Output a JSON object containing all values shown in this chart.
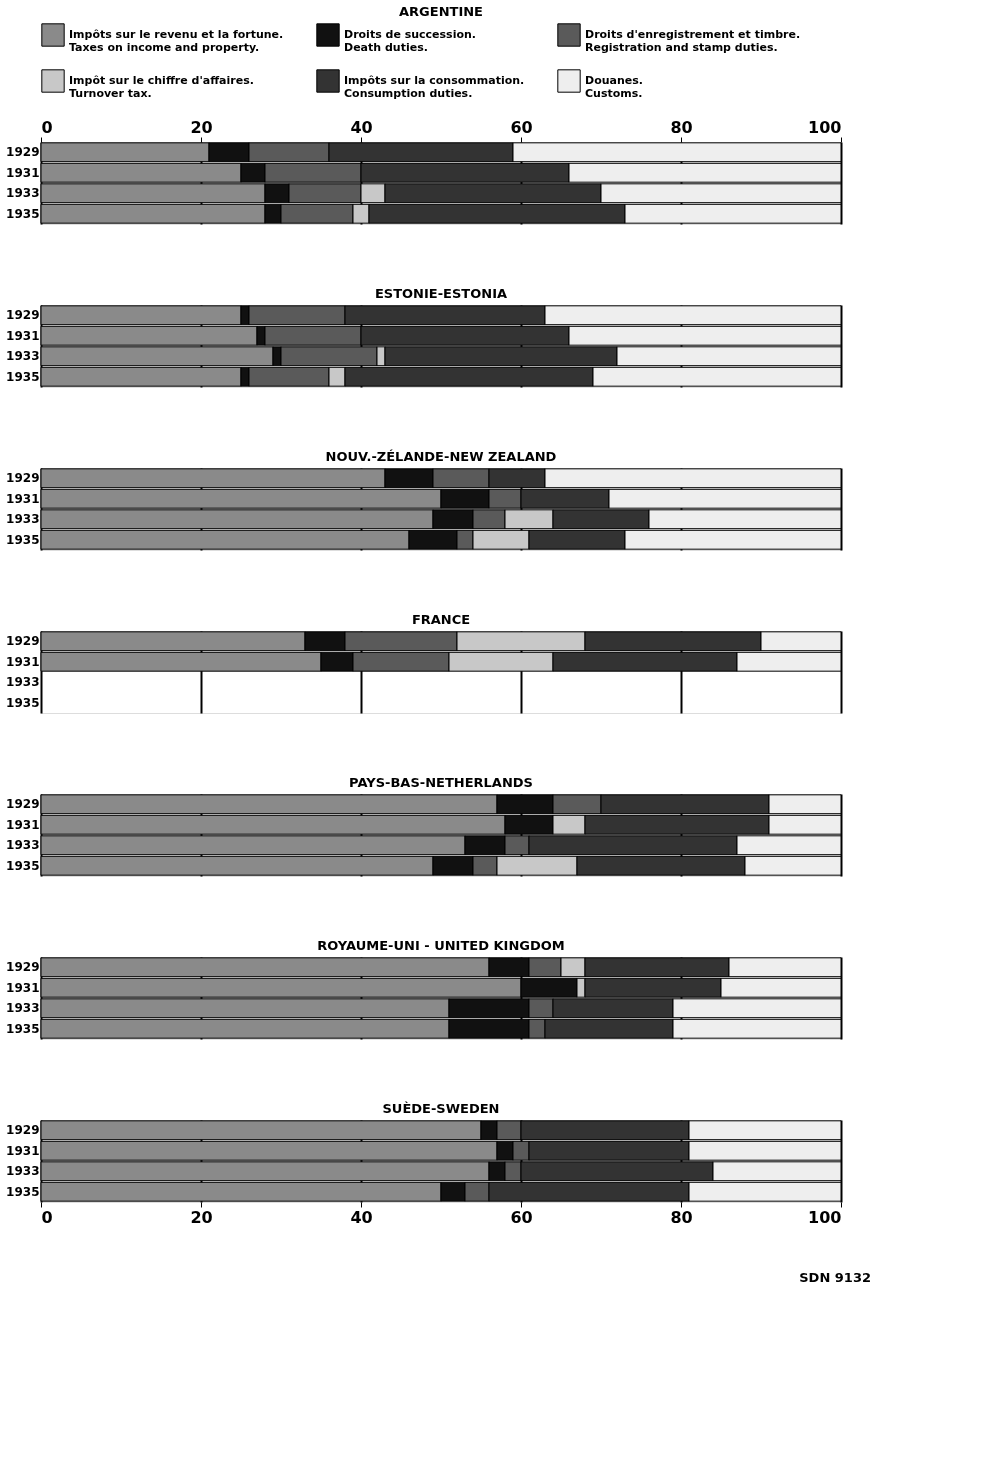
{
  "chart_data": [
    {
      "type": "bar",
      "orientation": "horizontal",
      "stacked": true,
      "title": "ARGENTINE",
      "categories": [
        "1929",
        "1931",
        "1933",
        "1935"
      ],
      "xlim": [
        0,
        100
      ],
      "xticks": [
        0,
        20,
        40,
        60,
        80,
        100
      ],
      "grid": "x",
      "legend": "top",
      "series": [
        {
          "name": "Impôts sur le revenu et la fortune.\nTaxes on income and property.",
          "color": "#8a8a8a",
          "values": [
            21,
            25,
            28,
            28
          ]
        },
        {
          "name": "Droits de succession.\nDeath duties.",
          "color": "#111111",
          "values": [
            5,
            3,
            3,
            2
          ]
        },
        {
          "name": "Droits d'enregistrement et timbre.\nRegistration and stamp duties.",
          "color": "#5a5a5a",
          "values": [
            10,
            12,
            9,
            9
          ]
        },
        {
          "name": "Impôt sur le chiffre d'affaires.\nTurnover tax.",
          "color": "#c8c8c8",
          "values": [
            null,
            null,
            3,
            2
          ]
        },
        {
          "name": "Impôts sur la consommation.\nConsumption duties.",
          "color": "#333333",
          "values": [
            23,
            26,
            27,
            32
          ]
        },
        {
          "name": "Douanes.\nCustoms.",
          "color": "#eeeeee",
          "values": [
            41,
            34,
            30,
            27
          ]
        }
      ]
    },
    {
      "type": "bar",
      "orientation": "horizontal",
      "stacked": true,
      "title": "ESTONIE-ESTONIA",
      "categories": [
        "1929",
        "1931",
        "1933",
        "1935"
      ],
      "xlim": [
        0,
        100
      ],
      "xticks": [
        0,
        20,
        40,
        60,
        80,
        100
      ],
      "grid": "x",
      "tick_labels": "y",
      "series": [
        {
          "color": "#8a8a8a",
          "values": [
            25,
            27,
            29,
            25
          ]
        },
        {
          "color": "#111111",
          "values": [
            1,
            1,
            1,
            1
          ]
        },
        {
          "color": "#5a5a5a",
          "values": [
            12,
            12,
            12,
            10
          ]
        },
        {
          "color": "#c8c8c8",
          "values": [
            null,
            null,
            1,
            2
          ]
        },
        {
          "color": "#333333",
          "values": [
            25,
            26,
            29,
            31
          ]
        },
        {
          "color": "#eeeeee",
          "values": [
            37,
            34,
            28,
            31
          ]
        }
      ]
    },
    {
      "type": "bar",
      "orientation": "horizontal",
      "stacked": true,
      "title": "NOUV.-ZÉLANDE-NEW ZEALAND",
      "categories": [
        "1929",
        "1931",
        "1933",
        "1935"
      ],
      "xlim": [
        0,
        100
      ],
      "xticks": [
        0,
        20,
        40,
        60,
        80,
        100
      ],
      "grid": "x",
      "tick_labels": "y",
      "series": [
        {
          "color": "#8a8a8a",
          "values": [
            43,
            50,
            49,
            46
          ]
        },
        {
          "color": "#111111",
          "values": [
            6,
            6,
            5,
            6
          ]
        },
        {
          "color": "#5a5a5a",
          "values": [
            7,
            4,
            4,
            2
          ]
        },
        {
          "color": "#c8c8c8",
          "values": [
            null,
            null,
            6,
            7
          ]
        },
        {
          "color": "#333333",
          "values": [
            7,
            11,
            12,
            12
          ]
        },
        {
          "color": "#eeeeee",
          "values": [
            37,
            29,
            24,
            27
          ]
        }
      ]
    },
    {
      "type": "bar",
      "orientation": "horizontal",
      "stacked": true,
      "title": "FRANCE",
      "categories": [
        "1929",
        "1931",
        "1933",
        "1935"
      ],
      "xlim": [
        0,
        100
      ],
      "xticks": [
        0,
        20,
        40,
        60,
        80,
        100
      ],
      "grid": "x",
      "tick_labels": "y",
      "series": [
        {
          "color": "#8a8a8a",
          "values": [
            33,
            35,
            null,
            null
          ]
        },
        {
          "color": "#111111",
          "values": [
            5,
            4,
            null,
            null
          ]
        },
        {
          "color": "#5a5a5a",
          "values": [
            14,
            12,
            null,
            null
          ]
        },
        {
          "color": "#c8c8c8",
          "values": [
            16,
            13,
            null,
            null
          ]
        },
        {
          "color": "#333333",
          "values": [
            22,
            23,
            null,
            null
          ]
        },
        {
          "color": "#eeeeee",
          "values": [
            10,
            13,
            null,
            null
          ]
        }
      ]
    },
    {
      "type": "bar",
      "orientation": "horizontal",
      "stacked": true,
      "title": "PAYS-BAS-NETHERLANDS",
      "categories": [
        "1929",
        "1931",
        "1933",
        "1935"
      ],
      "xlim": [
        0,
        100
      ],
      "xticks": [
        0,
        20,
        40,
        60,
        80,
        100
      ],
      "grid": "x",
      "tick_labels": "y",
      "series": [
        {
          "color": "#8a8a8a",
          "values": [
            57,
            58,
            53,
            49
          ]
        },
        {
          "color": "#111111",
          "values": [
            7,
            6,
            5,
            5
          ]
        },
        {
          "color": "#5a5a5a",
          "values": [
            6,
            null,
            3,
            3
          ]
        },
        {
          "color": "#c8c8c8",
          "values": [
            null,
            4,
            null,
            10
          ]
        },
        {
          "color": "#333333",
          "values": [
            21,
            23,
            26,
            21
          ]
        },
        {
          "color": "#eeeeee",
          "values": [
            9,
            9,
            13,
            12
          ]
        }
      ]
    },
    {
      "type": "bar",
      "orientation": "horizontal",
      "stacked": true,
      "title": "ROYAUME-UNI - UNITED KINGDOM",
      "categories": [
        "1929",
        "1931",
        "1933",
        "1935"
      ],
      "xlim": [
        0,
        100
      ],
      "xticks": [
        0,
        20,
        40,
        60,
        80,
        100
      ],
      "grid": "x",
      "tick_labels": "y",
      "series": [
        {
          "color": "#8a8a8a",
          "values": [
            56,
            60,
            51,
            51
          ]
        },
        {
          "color": "#111111",
          "values": [
            5,
            7,
            10,
            10
          ]
        },
        {
          "color": "#5a5a5a",
          "values": [
            4,
            null,
            3,
            2
          ]
        },
        {
          "color": "#c8c8c8",
          "values": [
            3,
            1,
            null,
            null
          ]
        },
        {
          "color": "#333333",
          "values": [
            18,
            17,
            15,
            16
          ]
        },
        {
          "color": "#eeeeee",
          "values": [
            14,
            15,
            21,
            21
          ]
        }
      ]
    },
    {
      "type": "bar",
      "orientation": "horizontal",
      "stacked": true,
      "title": "SUÈDE-SWEDEN",
      "categories": [
        "1929",
        "1931",
        "1933",
        "1935"
      ],
      "xlim": [
        0,
        100
      ],
      "xticks": [
        0,
        20,
        40,
        60,
        80,
        100
      ],
      "grid": "x",
      "annotations": [
        "SDN 9132"
      ],
      "series": [
        {
          "color": "#8a8a8a",
          "values": [
            55,
            57,
            56,
            50
          ]
        },
        {
          "color": "#111111",
          "values": [
            2,
            2,
            2,
            3
          ]
        },
        {
          "color": "#5a5a5a",
          "values": [
            3,
            2,
            2,
            3
          ]
        },
        {
          "color": "#c8c8c8",
          "values": [
            null,
            null,
            null,
            null
          ]
        },
        {
          "color": "#333333",
          "values": [
            21,
            20,
            24,
            25
          ]
        },
        {
          "color": "#eeeeee",
          "values": [
            19,
            19,
            16,
            19
          ]
        }
      ]
    }
  ]
}
